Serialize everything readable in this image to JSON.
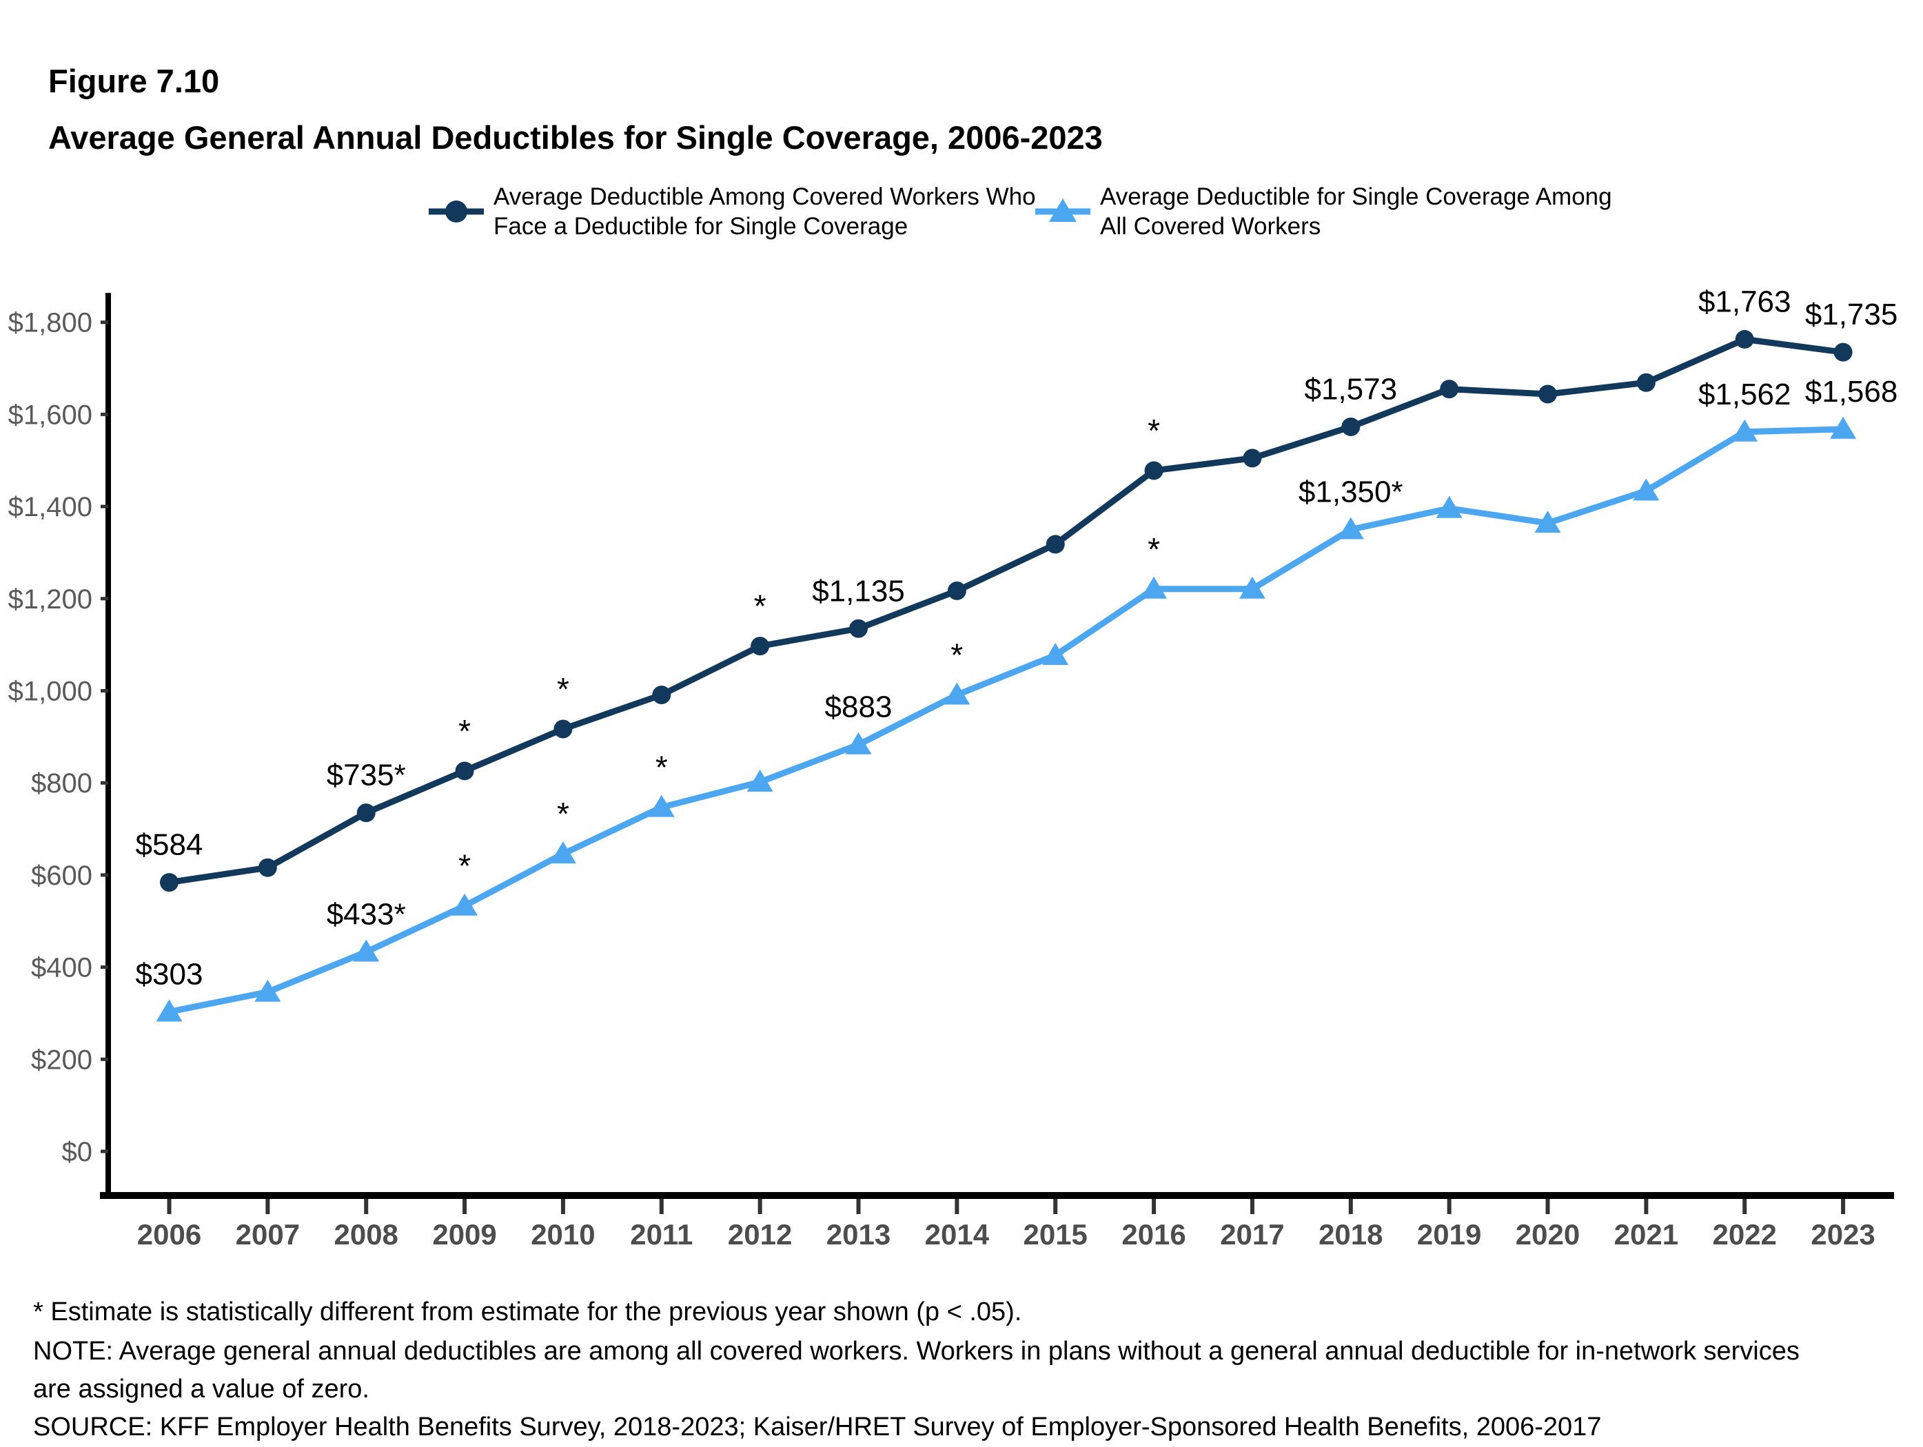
{
  "header": {
    "figure_label": "Figure 7.10",
    "title": "Average General Annual Deductibles for Single Coverage, 2006-2023"
  },
  "legend": [
    {
      "line1": "Average Deductible Among Covered Workers Who",
      "line2": "Face a Deductible for Single Coverage",
      "color": "#12395B",
      "marker": "circle"
    },
    {
      "line1": "Average Deductible for Single Coverage Among",
      "line2": "All Covered Workers",
      "color": "#4DA6F0",
      "marker": "triangle"
    }
  ],
  "chart_data": {
    "type": "line",
    "title": "Average General Annual Deductibles for Single Coverage, 2006-2023",
    "x": [
      2006,
      2007,
      2008,
      2009,
      2010,
      2011,
      2012,
      2013,
      2014,
      2015,
      2016,
      2017,
      2018,
      2019,
      2020,
      2021,
      2022,
      2023
    ],
    "series": [
      {
        "name": "Average Deductible Among Covered Workers Who Face a Deductible for Single Coverage",
        "color": "#12395B",
        "marker": "circle",
        "values": [
          584,
          616,
          735,
          826,
          917,
          991,
          1097,
          1135,
          1217,
          1318,
          1478,
          1505,
          1573,
          1655,
          1644,
          1669,
          1763,
          1735
        ],
        "value_labels": [
          {
            "year": 2006,
            "text": "$584"
          },
          {
            "year": 2008,
            "text": "$735*"
          },
          {
            "year": 2013,
            "text": "$1,135"
          },
          {
            "year": 2018,
            "text": "$1,573"
          },
          {
            "year": 2022,
            "text": "$1,763"
          },
          {
            "year": 2023,
            "text": "$1,735",
            "dx": 12
          }
        ],
        "asterisk_years": [
          2009,
          2010,
          2012,
          2016
        ]
      },
      {
        "name": "Average Deductible for Single Coverage Among All Covered Workers",
        "color": "#4DA6F0",
        "marker": "triangle",
        "values": [
          303,
          346,
          433,
          533,
          646,
          747,
          802,
          883,
          991,
          1077,
          1221,
          1221,
          1350,
          1396,
          1364,
          1434,
          1562,
          1568
        ],
        "value_labels": [
          {
            "year": 2006,
            "text": "$303"
          },
          {
            "year": 2008,
            "text": "$433*"
          },
          {
            "year": 2013,
            "text": "$883"
          },
          {
            "year": 2018,
            "text": "$1,350*"
          },
          {
            "year": 2022,
            "text": "$1,562"
          },
          {
            "year": 2023,
            "text": "$1,568",
            "dx": 12
          }
        ],
        "asterisk_years": [
          2009,
          2010,
          2011,
          2014,
          2016
        ]
      }
    ],
    "ylim": [
      0,
      1800
    ],
    "ytick_step": 200,
    "y_ticks": [
      "$0",
      "$200",
      "$400",
      "$600",
      "$800",
      "$1,000",
      "$1,200",
      "$1,400",
      "$1,600",
      "$1,800"
    ],
    "grid": false,
    "legend_position": "top"
  },
  "footnotes": [
    "* Estimate is statistically different from estimate for the previous year shown (p < .05).",
    "NOTE: Average general annual deductibles are among all covered workers. Workers in plans without a general annual deductible for in-network services",
    "are assigned a value of zero.",
    "SOURCE: KFF Employer Health Benefits Survey, 2018-2023; Kaiser/HRET Survey of Employer-Sponsored Health Benefits, 2006-2017"
  ],
  "colors": {
    "axis": "#000000",
    "tick": "#333333",
    "ytick_label": "#595959",
    "xtick_label": "#4d4d4d",
    "data_label": "#000000"
  }
}
